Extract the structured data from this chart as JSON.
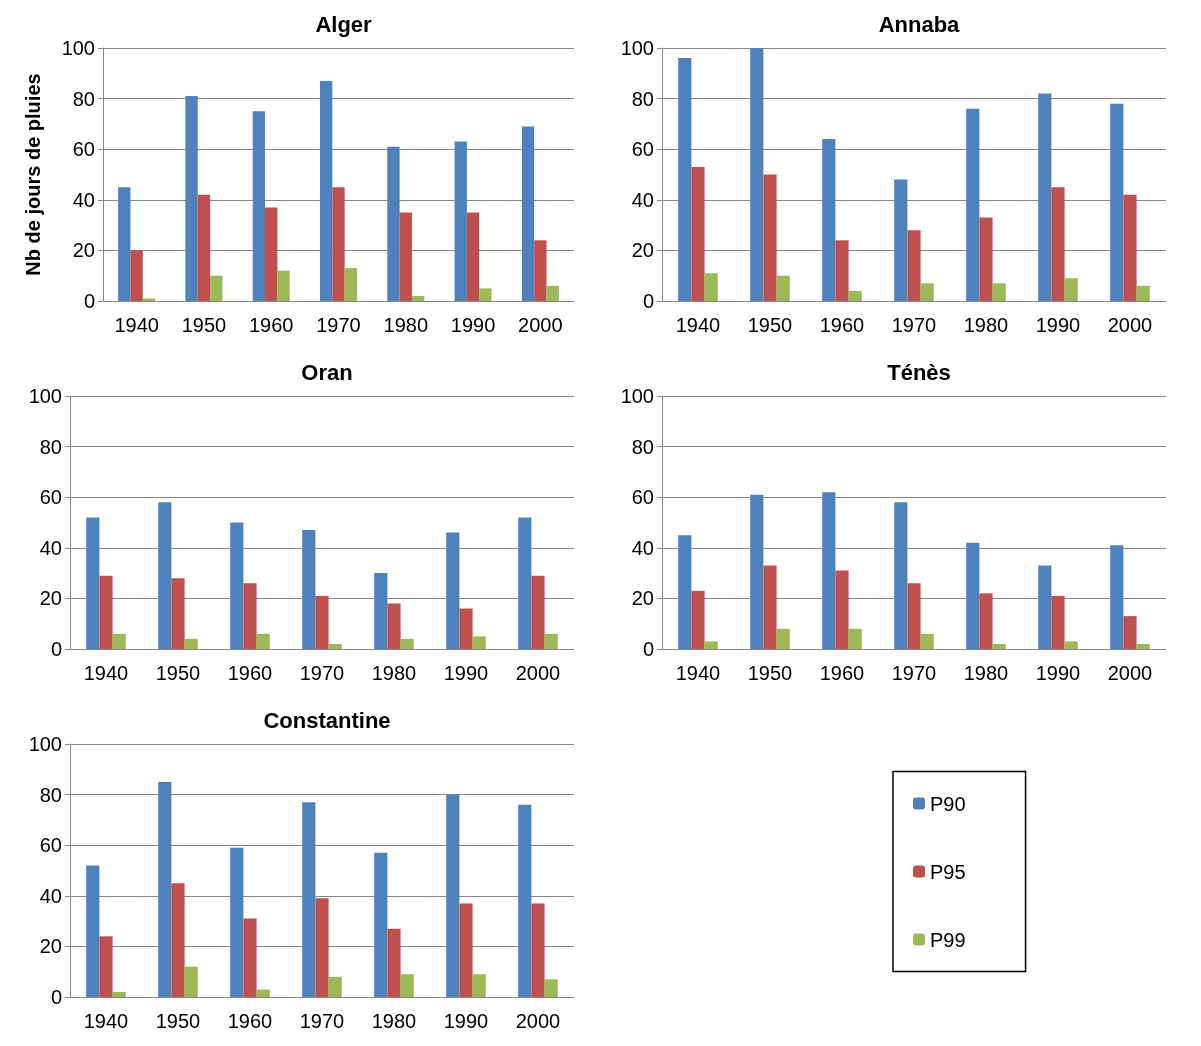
{
  "chart_data": [
    {
      "type": "bar",
      "title": "Alger",
      "ylabel": "Nb de jours de pluies",
      "categories": [
        "1940",
        "1950",
        "1960",
        "1970",
        "1980",
        "1990",
        "2000"
      ],
      "ylim": [
        0,
        100
      ],
      "yticks": [
        0,
        20,
        40,
        60,
        80,
        100
      ],
      "grid": "y",
      "legend": false,
      "series": [
        {
          "color": "#4f81bd",
          "values": [
            45,
            81,
            75,
            87,
            61,
            63,
            69
          ]
        },
        {
          "color": "#c0504d",
          "values": [
            20,
            42,
            37,
            45,
            35,
            35,
            24
          ]
        },
        {
          "color": "#9bbb59",
          "values": [
            1,
            10,
            12,
            13,
            2,
            5,
            6
          ]
        }
      ]
    },
    {
      "type": "bar",
      "title": "Annaba",
      "categories": [
        "1940",
        "1950",
        "1960",
        "1970",
        "1980",
        "1990",
        "2000"
      ],
      "ylim": [
        0,
        100
      ],
      "yticks": [
        0,
        20,
        40,
        60,
        80,
        100
      ],
      "grid": "y",
      "legend": false,
      "series": [
        {
          "color": "#4f81bd",
          "values": [
            96,
            100,
            64,
            48,
            76,
            82,
            78
          ]
        },
        {
          "color": "#c0504d",
          "values": [
            53,
            50,
            24,
            28,
            33,
            45,
            42
          ]
        },
        {
          "color": "#9bbb59",
          "values": [
            11,
            10,
            4,
            7,
            7,
            9,
            6
          ]
        }
      ]
    },
    {
      "type": "bar",
      "title": "Oran",
      "categories": [
        "1940",
        "1950",
        "1960",
        "1970",
        "1980",
        "1990",
        "2000"
      ],
      "ylim": [
        0,
        100
      ],
      "yticks": [
        0,
        20,
        40,
        60,
        80,
        100
      ],
      "grid": "y",
      "legend": false,
      "series": [
        {
          "color": "#4f81bd",
          "values": [
            52,
            58,
            50,
            47,
            30,
            46,
            52
          ]
        },
        {
          "color": "#c0504d",
          "values": [
            29,
            28,
            26,
            21,
            18,
            16,
            29
          ]
        },
        {
          "color": "#9bbb59",
          "values": [
            6,
            4,
            6,
            2,
            4,
            5,
            6
          ]
        }
      ]
    },
    {
      "type": "bar",
      "title": "Ténès",
      "categories": [
        "1940",
        "1950",
        "1960",
        "1970",
        "1980",
        "1990",
        "2000"
      ],
      "ylim": [
        0,
        100
      ],
      "yticks": [
        0,
        20,
        40,
        60,
        80,
        100
      ],
      "grid": "y",
      "legend": false,
      "series": [
        {
          "color": "#4f81bd",
          "values": [
            45,
            61,
            62,
            58,
            42,
            33,
            41
          ]
        },
        {
          "color": "#c0504d",
          "values": [
            23,
            33,
            31,
            26,
            22,
            21,
            13
          ]
        },
        {
          "color": "#9bbb59",
          "values": [
            3,
            8,
            8,
            6,
            2,
            3,
            2
          ]
        }
      ]
    },
    {
      "type": "bar",
      "title": "Constantine",
      "categories": [
        "1940",
        "1950",
        "1960",
        "1970",
        "1980",
        "1990",
        "2000"
      ],
      "ylim": [
        0,
        100
      ],
      "yticks": [
        0,
        20,
        40,
        60,
        80,
        100
      ],
      "grid": "y",
      "legend": "right",
      "series": [
        {
          "name": "P90",
          "color": "#4f81bd",
          "values": [
            52,
            85,
            59,
            77,
            57,
            80,
            76
          ]
        },
        {
          "name": "P95",
          "color": "#c0504d",
          "values": [
            24,
            45,
            31,
            39,
            27,
            37,
            37
          ]
        },
        {
          "name": "P99",
          "color": "#9bbb59",
          "values": [
            2,
            12,
            3,
            8,
            9,
            9,
            7
          ]
        }
      ]
    }
  ]
}
